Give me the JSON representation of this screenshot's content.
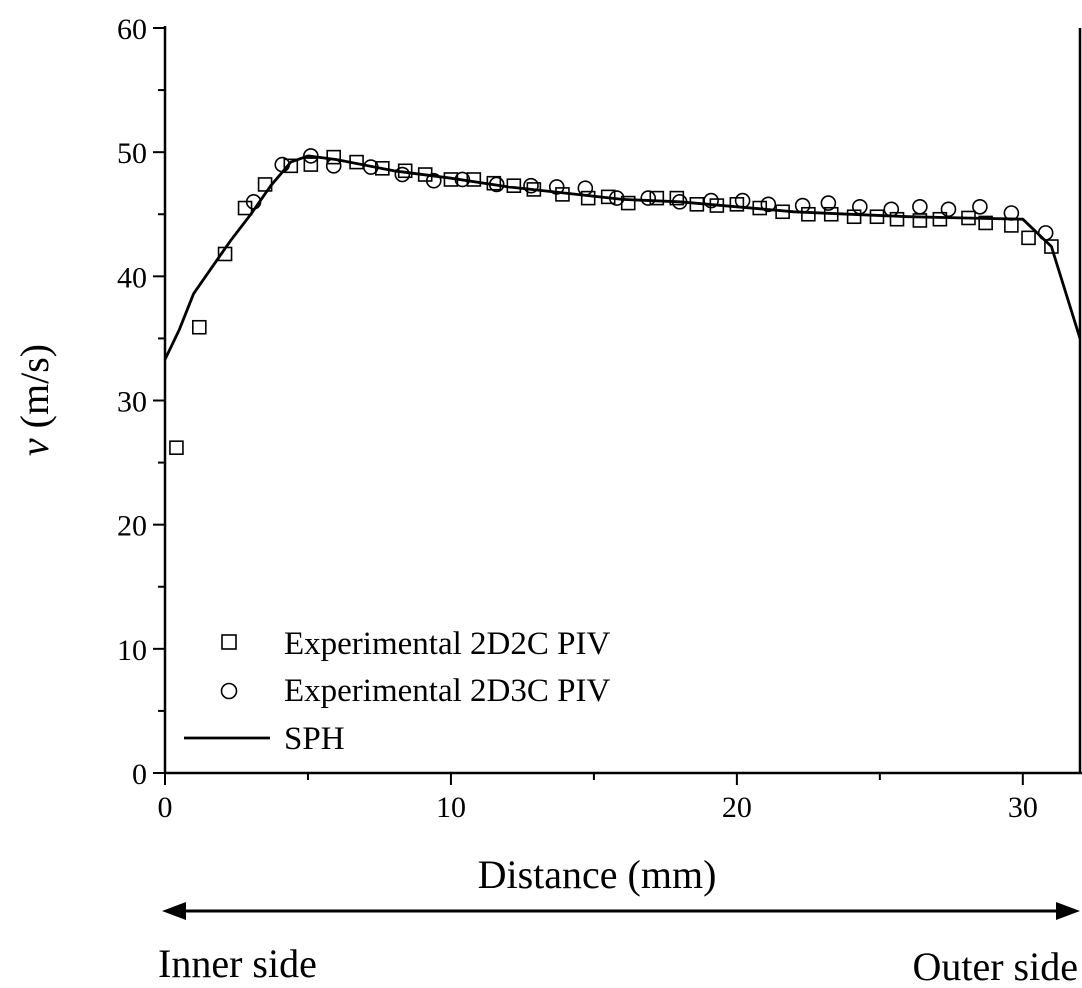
{
  "chart_data": {
    "type": "scatter",
    "xlabel": "Distance (mm)",
    "ylabel_italic": "v",
    "ylabel_unit": "(m/s)",
    "xlim": [
      0,
      32
    ],
    "ylim": [
      0,
      60
    ],
    "xticks": [
      0,
      10,
      20,
      30
    ],
    "yticks": [
      0,
      10,
      20,
      30,
      40,
      50,
      60
    ],
    "x_minor_step": 5,
    "y_minor_step": 5,
    "grid": false,
    "legend_position": "bottom-left",
    "series": [
      {
        "name": "Experimental 2D2C PIV",
        "marker": "square",
        "points": [
          [
            0.4,
            26.2
          ],
          [
            1.2,
            35.9
          ],
          [
            2.1,
            41.8
          ],
          [
            2.8,
            45.5
          ],
          [
            3.5,
            47.4
          ],
          [
            4.4,
            48.9
          ],
          [
            5.1,
            49.0
          ],
          [
            5.9,
            49.6
          ],
          [
            6.7,
            49.2
          ],
          [
            7.6,
            48.7
          ],
          [
            8.4,
            48.5
          ],
          [
            9.1,
            48.2
          ],
          [
            10.0,
            47.8
          ],
          [
            10.8,
            47.8
          ],
          [
            11.5,
            47.5
          ],
          [
            12.2,
            47.3
          ],
          [
            12.9,
            47.0
          ],
          [
            13.9,
            46.6
          ],
          [
            14.8,
            46.3
          ],
          [
            15.5,
            46.4
          ],
          [
            16.2,
            45.9
          ],
          [
            17.2,
            46.3
          ],
          [
            17.9,
            46.3
          ],
          [
            18.6,
            45.8
          ],
          [
            19.3,
            45.7
          ],
          [
            20.0,
            45.8
          ],
          [
            20.8,
            45.5
          ],
          [
            21.6,
            45.2
          ],
          [
            22.5,
            45.0
          ],
          [
            23.3,
            45.0
          ],
          [
            24.1,
            44.8
          ],
          [
            24.9,
            44.8
          ],
          [
            25.6,
            44.6
          ],
          [
            26.4,
            44.5
          ],
          [
            27.1,
            44.6
          ],
          [
            28.1,
            44.7
          ],
          [
            28.7,
            44.3
          ],
          [
            29.6,
            44.1
          ],
          [
            30.2,
            43.1
          ],
          [
            31.0,
            42.4
          ]
        ]
      },
      {
        "name": "Experimental 2D3C PIV",
        "marker": "circle",
        "points": [
          [
            3.1,
            46.0
          ],
          [
            4.1,
            49.0
          ],
          [
            5.1,
            49.7
          ],
          [
            5.9,
            48.9
          ],
          [
            7.2,
            48.8
          ],
          [
            8.3,
            48.2
          ],
          [
            9.4,
            47.7
          ],
          [
            10.4,
            47.8
          ],
          [
            11.6,
            47.4
          ],
          [
            12.8,
            47.3
          ],
          [
            13.7,
            47.2
          ],
          [
            14.7,
            47.1
          ],
          [
            15.8,
            46.3
          ],
          [
            16.9,
            46.3
          ],
          [
            18.0,
            46.0
          ],
          [
            19.1,
            46.1
          ],
          [
            20.2,
            46.1
          ],
          [
            21.1,
            45.8
          ],
          [
            22.3,
            45.7
          ],
          [
            23.2,
            45.9
          ],
          [
            24.3,
            45.6
          ],
          [
            25.4,
            45.4
          ],
          [
            26.4,
            45.6
          ],
          [
            27.4,
            45.4
          ],
          [
            28.5,
            45.6
          ],
          [
            29.6,
            45.1
          ],
          [
            30.8,
            43.5
          ]
        ]
      },
      {
        "name": "SPH",
        "marker": "line",
        "points": [
          [
            0.0,
            33.3
          ],
          [
            0.5,
            35.7
          ],
          [
            1.0,
            38.6
          ],
          [
            1.6,
            40.6
          ],
          [
            2.3,
            42.9
          ],
          [
            3.0,
            45.0
          ],
          [
            3.7,
            47.3
          ],
          [
            4.4,
            49.2
          ],
          [
            5.0,
            49.7
          ],
          [
            6.0,
            49.4
          ],
          [
            8.0,
            48.5
          ],
          [
            10.0,
            47.9
          ],
          [
            12.0,
            47.2
          ],
          [
            14.0,
            46.7
          ],
          [
            16.0,
            46.2
          ],
          [
            18.0,
            46.0
          ],
          [
            20.0,
            45.6
          ],
          [
            22.0,
            45.2
          ],
          [
            24.0,
            45.0
          ],
          [
            26.0,
            44.8
          ],
          [
            28.0,
            44.7
          ],
          [
            30.0,
            44.6
          ],
          [
            31.0,
            42.4
          ],
          [
            32.0,
            35.0
          ]
        ]
      }
    ]
  },
  "sides": {
    "inner": "Inner side",
    "outer": "Outer side"
  }
}
